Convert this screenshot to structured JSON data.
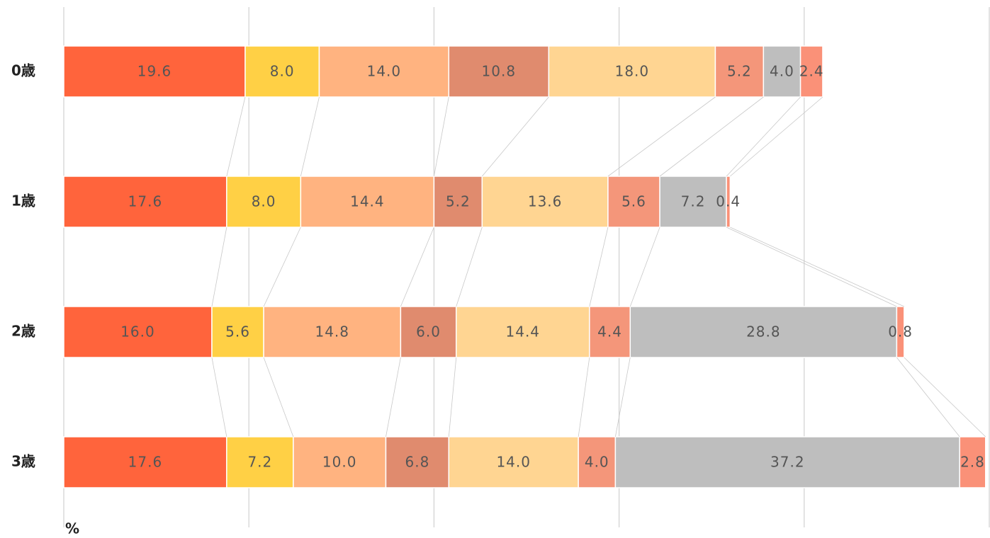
{
  "chart_data": {
    "type": "stacked_barh",
    "categories": [
      "0歳",
      "1歳",
      "2歳",
      "3歳"
    ],
    "series": [
      {
        "color": "#ff643c",
        "values": [
          19.6,
          17.6,
          16.0,
          17.6
        ],
        "value_labels": [
          "19.6",
          "17.6",
          "16.0",
          "17.6"
        ]
      },
      {
        "color": "#ffd045",
        "values": [
          8.0,
          8.0,
          5.6,
          7.2
        ],
        "value_labels": [
          "8.0",
          "8.0",
          "5.6",
          "7.2"
        ]
      },
      {
        "color": "#ffb380",
        "values": [
          14.0,
          14.4,
          14.8,
          10.0
        ],
        "value_labels": [
          "14.0",
          "14.4",
          "14.8",
          "10.0"
        ]
      },
      {
        "color": "#e08b6e",
        "values": [
          10.8,
          5.2,
          6.0,
          6.8
        ],
        "value_labels": [
          "10.8",
          "5.2",
          "6.0",
          "6.8"
        ]
      },
      {
        "color": "#ffd592",
        "values": [
          18.0,
          13.6,
          14.4,
          14.0
        ],
        "value_labels": [
          "18.0",
          "13.6",
          "14.4",
          "14.0"
        ]
      },
      {
        "color": "#f4967a",
        "values": [
          5.2,
          5.6,
          4.4,
          4.0
        ],
        "value_labels": [
          "5.2",
          "5.6",
          "4.4",
          "4.0"
        ]
      },
      {
        "color": "#bebebe",
        "values": [
          4.0,
          7.2,
          28.8,
          37.2
        ],
        "value_labels": [
          "4.0",
          "7.2",
          "28.8",
          "37.2"
        ]
      },
      {
        "color": "#fa9178",
        "values": [
          2.4,
          0.4,
          0.8,
          2.8
        ],
        "value_labels": [
          "2.4",
          "0.4",
          "0.8",
          "2.8"
        ]
      }
    ],
    "xlim": [
      0,
      100
    ],
    "xticks": [
      0,
      20,
      40,
      60,
      80,
      100
    ],
    "grid": true,
    "x_label": "%"
  }
}
